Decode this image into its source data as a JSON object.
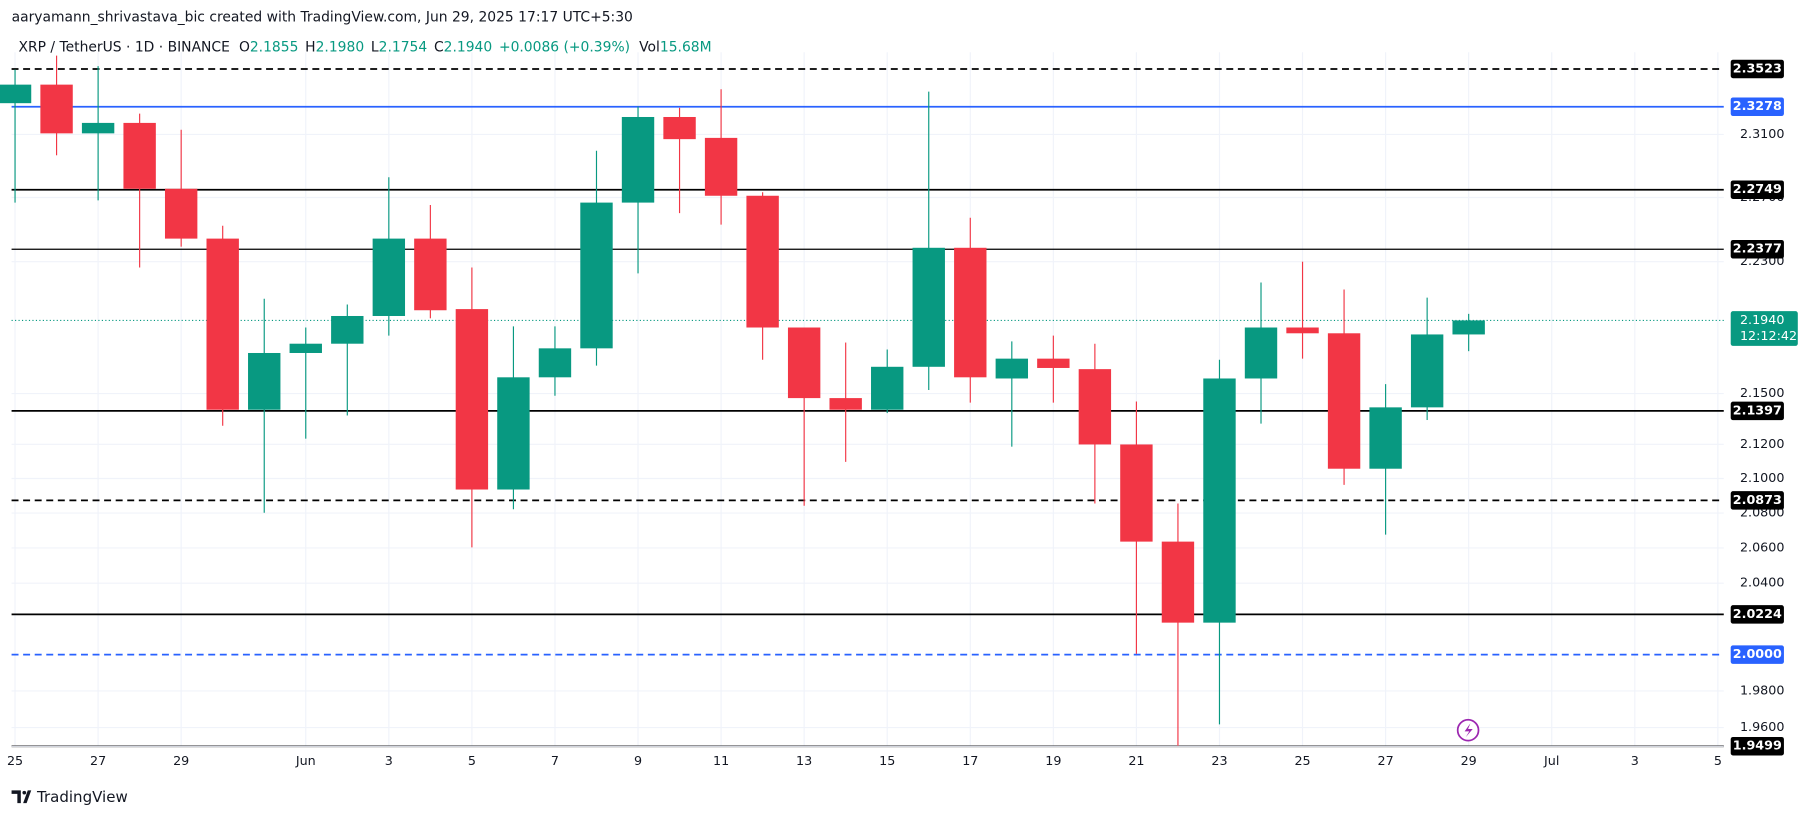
{
  "header": {
    "credit": "aaryamann_shrivastava_bic created with TradingView.com, Jun 29, 2025 17:17 UTC+5:30",
    "symbol": "XRP / TetherUS · 1D · BINANCE",
    "ohlc": [
      {
        "key": "O",
        "value": "2.1855"
      },
      {
        "key": "H",
        "value": "2.1980"
      },
      {
        "key": "L",
        "value": "2.1754"
      },
      {
        "key": "C",
        "value": "2.1940"
      }
    ],
    "change": "+0.0086 (+0.39%)",
    "volume": {
      "key": "Vol",
      "value": "15.68M"
    }
  },
  "footer": {
    "brand": "TradingView"
  },
  "chart_data": {
    "type": "candlestick",
    "categories": [
      "25",
      null,
      "27",
      null,
      "29",
      null,
      null,
      "Jun",
      null,
      "3",
      null,
      "5",
      null,
      "7",
      null,
      "9",
      null,
      "11",
      null,
      "13",
      null,
      "15",
      null,
      "17",
      null,
      "19",
      null,
      "21",
      null,
      "23",
      null,
      "25",
      null,
      "27",
      null,
      "29",
      null,
      "Jul",
      null,
      "3",
      null,
      "5"
    ],
    "open": [
      2.3301,
      2.3421,
      2.3107,
      2.3174,
      2.2755,
      2.2443,
      2.1404,
      2.1743,
      2.1799,
      2.1967,
      2.2443,
      2.2009,
      2.0936,
      2.1597,
      2.1771,
      2.2668,
      2.3212,
      2.3078,
      2.2711,
      2.1897,
      2.1473,
      2.1404,
      2.166,
      2.2386,
      2.159,
      2.1709,
      2.1646,
      2.1199,
      2.0636,
      2.0178,
      2.159,
      2.1897,
      2.1862,
      2.1057,
      2.1418,
      2.1855,
      null,
      null,
      null,
      null,
      null,
      null
    ],
    "high": [
      2.3519,
      2.361,
      2.3541,
      2.3234,
      2.313,
      2.2523,
      2.2072,
      2.1897,
      2.2037,
      2.2828,
      2.2653,
      2.2264,
      2.1904,
      2.1904,
      2.2996,
      2.3279,
      2.3271,
      2.3391,
      2.2733,
      2.1897,
      2.1806,
      2.1764,
      2.3376,
      2.2573,
      2.1813,
      2.1848,
      2.1799,
      2.1453,
      2.0855,
      2.1702,
      2.2172,
      2.23,
      2.2129,
      2.1556,
      2.2079,
      2.198,
      null,
      null,
      null,
      null,
      null,
      null
    ],
    "low": [
      2.2668,
      2.2967,
      2.2682,
      2.2264,
      2.2393,
      2.1309,
      2.0802,
      2.1233,
      2.137,
      2.1848,
      2.1953,
      2.0603,
      2.0822,
      2.1487,
      2.1667,
      2.2228,
      2.2602,
      2.253,
      2.1702,
      2.0842,
      2.1097,
      2.1384,
      2.1521,
      2.1446,
      2.1186,
      2.1446,
      2.0855,
      2.0004,
      1.9498,
      1.9617,
      2.1322,
      2.1709,
      2.0963,
      2.0676,
      2.1343,
      2.1754,
      null,
      null,
      null,
      null,
      null,
      null
    ],
    "close": [
      2.3421,
      2.3107,
      2.3174,
      2.2755,
      2.2443,
      2.1404,
      2.1743,
      2.1799,
      2.1967,
      2.2443,
      2.2002,
      2.0936,
      2.1597,
      2.1771,
      2.2668,
      2.3212,
      2.307,
      2.2711,
      2.1897,
      2.1473,
      2.1404,
      2.166,
      2.2386,
      2.1597,
      2.1709,
      2.1653,
      2.1199,
      2.0636,
      2.0178,
      2.159,
      2.1897,
      2.1862,
      2.1057,
      2.1418,
      2.1855,
      2.194,
      null,
      null,
      null,
      null,
      null,
      null
    ],
    "up_color": "#089981",
    "down_color": "#f23645",
    "log_scale": true,
    "grid": true,
    "ylim": [
      1.9498,
      2.3632
    ],
    "yticks": [
      {
        "value": 2.31,
        "label": "2.3100"
      },
      {
        "value": 2.27,
        "label": "2.2700"
      },
      {
        "value": 2.23,
        "label": "2.2300"
      },
      {
        "value": 2.15,
        "label": "2.1500"
      },
      {
        "value": 2.12,
        "label": "2.1200"
      },
      {
        "value": 2.1,
        "label": "2.1000"
      },
      {
        "value": 2.08,
        "label": "2.0800"
      },
      {
        "value": 2.06,
        "label": "2.0600"
      },
      {
        "value": 2.04,
        "label": "2.0400"
      },
      {
        "value": 1.98,
        "label": "1.9800"
      },
      {
        "value": 1.96,
        "label": "1.9600"
      }
    ],
    "levels": [
      {
        "value": 2.3523,
        "label": "2.3523",
        "color": "#000000",
        "style": "dashed"
      },
      {
        "value": 2.3278,
        "label": "2.3278",
        "color": "#2962ff",
        "style": "solid"
      },
      {
        "value": 2.2749,
        "label": "2.2749",
        "color": "#000000",
        "style": "solid"
      },
      {
        "value": 2.2377,
        "label": "2.2377",
        "color": "#000000",
        "style": "thin"
      },
      {
        "value": 2.1397,
        "label": "2.1397",
        "color": "#000000",
        "style": "solid"
      },
      {
        "value": 2.0873,
        "label": "2.0873",
        "color": "#000000",
        "style": "dashed"
      },
      {
        "value": 2.0224,
        "label": "2.0224",
        "color": "#000000",
        "style": "solid"
      },
      {
        "value": 2.0,
        "label": "2.0000",
        "color": "#2962ff",
        "style": "dashed"
      },
      {
        "value": 1.9499,
        "label": "1.9499",
        "color": "#000000",
        "style": "solid"
      }
    ],
    "last_price": {
      "value": 2.194,
      "label": "2.1940",
      "countdown": "12:12:42",
      "color": "#089981"
    }
  }
}
